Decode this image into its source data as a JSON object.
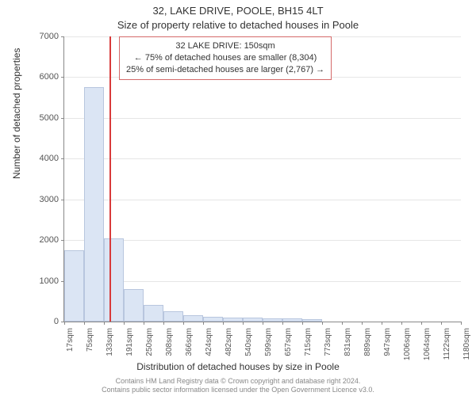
{
  "chart": {
    "type": "histogram",
    "title_main": "32, LAKE DRIVE, POOLE, BH15 4LT",
    "title_sub": "Size of property relative to detached houses in Poole",
    "title_fontsize": 13,
    "info_box": {
      "line1": "32 LAKE DRIVE: 150sqm",
      "line2": "← 75% of detached houses are smaller (8,304)",
      "line3": "25% of semi-detached houses are larger (2,767) →",
      "border_color": "#d46a6a",
      "fontsize": 11
    },
    "y_axis": {
      "label": "Number of detached properties",
      "label_fontsize": 12,
      "min": 0,
      "max": 7000,
      "tick_step": 1000,
      "ticks": [
        0,
        1000,
        2000,
        3000,
        4000,
        5000,
        6000,
        7000
      ]
    },
    "x_axis": {
      "label": "Distribution of detached houses by size in Poole",
      "label_fontsize": 12,
      "tick_labels": [
        "17sqm",
        "75sqm",
        "133sqm",
        "191sqm",
        "250sqm",
        "308sqm",
        "366sqm",
        "424sqm",
        "482sqm",
        "540sqm",
        "599sqm",
        "657sqm",
        "715sqm",
        "773sqm",
        "831sqm",
        "889sqm",
        "947sqm",
        "1006sqm",
        "1064sqm",
        "1122sqm",
        "1180sqm"
      ],
      "tick_fontsize": 10
    },
    "bars": {
      "values": [
        1750,
        5750,
        2050,
        800,
        400,
        250,
        150,
        120,
        100,
        90,
        80,
        70,
        60,
        0,
        0,
        0,
        0,
        0,
        0,
        0
      ],
      "fill_color": "#dbe5f4",
      "border_color": "#b8c6de"
    },
    "reference_line": {
      "value_sqm": 150,
      "color": "#d83a3a",
      "width": 2
    },
    "background_color": "#ffffff",
    "grid_color": "#e6e6e6",
    "axis_color": "#888888"
  },
  "footer": {
    "line1": "Contains HM Land Registry data © Crown copyright and database right 2024.",
    "line2": "Contains public sector information licensed under the Open Government Licence v3.0.",
    "fontsize": 9,
    "color": "#888888"
  }
}
